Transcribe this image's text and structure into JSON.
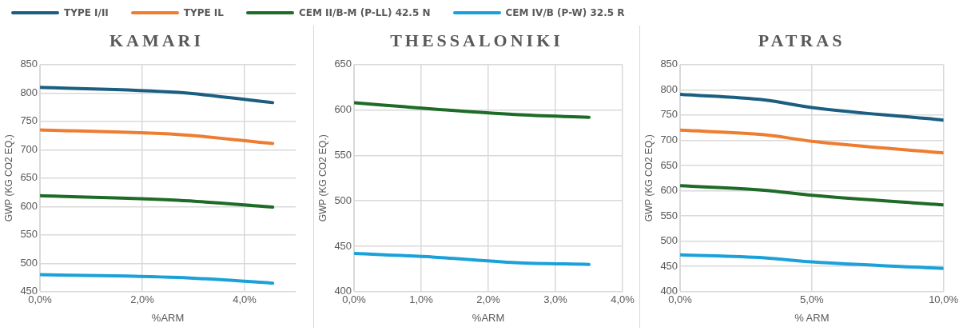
{
  "chart_data": [
    {
      "type": "line",
      "title": "KAMARI",
      "xlabel": "%ARM",
      "ylabel": "GWP (KG CO2 EQ.)",
      "xlim": [
        0,
        5
      ],
      "xticks": [
        {
          "value": 0,
          "label": "0,0%"
        },
        {
          "value": 2,
          "label": "2,0%"
        },
        {
          "value": 4,
          "label": "4,0%"
        }
      ],
      "ylim": [
        450,
        850
      ],
      "yticks": [
        450,
        500,
        550,
        600,
        650,
        700,
        750,
        800,
        850
      ],
      "grid": true,
      "legend": "top",
      "marker": "none",
      "line_style": "solid",
      "series": [
        {
          "name": "TYPE I/II",
          "color": "#1b5e80",
          "x": [
            0,
            2.7,
            4.55
          ],
          "values": [
            810,
            801,
            783
          ]
        },
        {
          "name": "TYPE IL",
          "color": "#ed7d31",
          "x": [
            0,
            2.7,
            4.55
          ],
          "values": [
            735,
            727,
            711
          ]
        },
        {
          "name": "CEM II/B-M (P-LL) 42.5 N",
          "color": "#1e6b27",
          "x": [
            0,
            2.7,
            4.55
          ],
          "values": [
            619,
            611,
            599
          ]
        },
        {
          "name": "CEM IV/B (P-W) 32.5 R",
          "color": "#1ba1d9",
          "x": [
            0,
            2.7,
            4.55
          ],
          "values": [
            480,
            475,
            465
          ]
        }
      ]
    },
    {
      "type": "line",
      "title": "THESSALONIKI",
      "xlabel": "%ARM",
      "ylabel": "GWP (KG CO2 EQ.)",
      "xlim": [
        0,
        4
      ],
      "xticks": [
        {
          "value": 0,
          "label": "0,0%"
        },
        {
          "value": 1,
          "label": "1,0%"
        },
        {
          "value": 2,
          "label": "2,0%"
        },
        {
          "value": 3,
          "label": "3,0%"
        },
        {
          "value": 4,
          "label": "4,0%"
        }
      ],
      "ylim": [
        400,
        650
      ],
      "yticks": [
        400,
        450,
        500,
        550,
        600,
        650
      ],
      "grid": true,
      "marker": "none",
      "line_style": "solid",
      "series": [
        {
          "color": "#1e6b27",
          "x": [
            0,
            1.2,
            2.4,
            3.5
          ],
          "values": [
            608,
            601,
            595,
            592
          ]
        },
        {
          "color": "#1ba1d9",
          "x": [
            0,
            1.2,
            2.4,
            3.5
          ],
          "values": [
            442,
            438,
            432,
            430
          ]
        }
      ]
    },
    {
      "type": "line",
      "title": "PATRAS",
      "xlabel": "% ARM",
      "ylabel": "GWP (KG CO2 EQ.)",
      "xlim": [
        0,
        10
      ],
      "xticks": [
        {
          "value": 0,
          "label": "0,0%"
        },
        {
          "value": 5,
          "label": "5,0%"
        },
        {
          "value": 10,
          "label": "10,0%"
        }
      ],
      "ylim": [
        400,
        850
      ],
      "yticks": [
        400,
        450,
        500,
        550,
        600,
        650,
        700,
        750,
        800,
        850
      ],
      "grid": true,
      "marker": "none",
      "line_style": "solid",
      "series": [
        {
          "color": "#1b5e80",
          "x": [
            0,
            3.2,
            5,
            10
          ],
          "values": [
            791,
            780,
            765,
            740
          ]
        },
        {
          "color": "#ed7d31",
          "x": [
            0,
            3.2,
            5,
            10
          ],
          "values": [
            720,
            711,
            698,
            675
          ]
        },
        {
          "color": "#1e6b27",
          "x": [
            0,
            3.2,
            5,
            10
          ],
          "values": [
            610,
            601,
            591,
            572
          ]
        },
        {
          "color": "#1ba1d9",
          "x": [
            0,
            3.2,
            5,
            10
          ],
          "values": [
            473,
            467,
            459,
            446
          ]
        }
      ]
    }
  ]
}
